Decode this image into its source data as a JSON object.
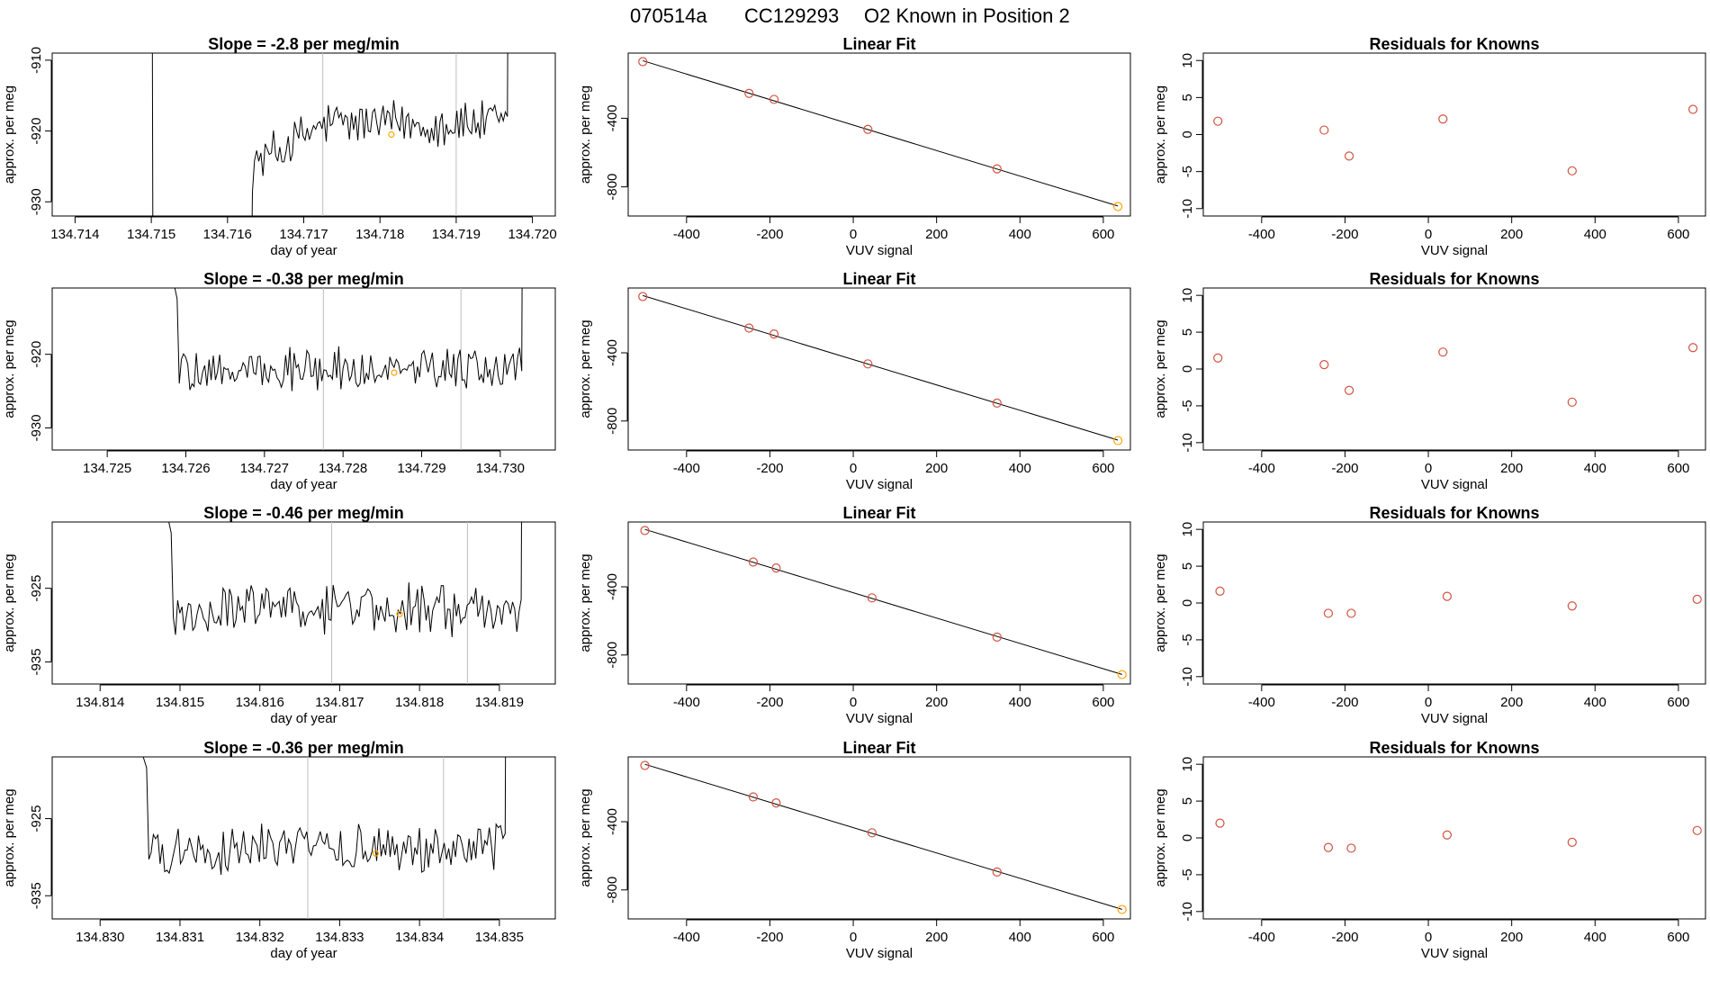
{
  "figure_title": {
    "run": "070514a",
    "cylinder": "CC129293",
    "description": "O2 Known in Position  2"
  },
  "colors": {
    "trace": "#000000",
    "point": "#D2533F",
    "highlight": "#FFA500",
    "vline": "#BEBEBE",
    "fit": "#000000"
  },
  "chart_data": [
    {
      "type": "line",
      "row": 0,
      "title": "Slope =  -2.8  per meg/min",
      "xlabel": "day of year",
      "ylabel": "approx. per meg",
      "xlim": [
        134.7137,
        134.7203
      ],
      "ylim": [
        -932,
        -909
      ],
      "xticks": [
        "134.714",
        "134.715",
        "134.716",
        "134.717",
        "134.718",
        "134.719",
        "134.720"
      ],
      "yticks": [
        "-910",
        "-920",
        "-930"
      ],
      "series_start": 134.715,
      "series_end": 134.7197,
      "settled_from": 134.7163,
      "baseline": -919,
      "early_level": -925,
      "noise": 3,
      "highlight_point": [
        134.71815,
        -920.5
      ],
      "vlines": [
        134.71725,
        134.719
      ]
    },
    {
      "type": "scatter",
      "row": 0,
      "title": "Linear Fit",
      "xlabel": "VUV signal",
      "ylabel": "approx. per meg",
      "xlim": [
        -540,
        665
      ],
      "ylim": [
        -970,
        -20
      ],
      "xticks": [
        "-400",
        "-200",
        "0",
        "200",
        "400",
        "600"
      ],
      "yticks": [
        "-400",
        "-800"
      ],
      "x": [
        -505,
        -250,
        -190,
        35,
        345,
        635
      ],
      "y": [
        -70,
        -255,
        -290,
        -465,
        -695,
        -915
      ]
    },
    {
      "type": "scatter",
      "row": 0,
      "title": "Residuals for Knowns",
      "xlabel": "VUV signal",
      "ylabel": "approx. per meg",
      "xlim": [
        -540,
        665
      ],
      "ylim": [
        -11,
        11
      ],
      "xticks": [
        "-400",
        "-200",
        "0",
        "200",
        "400",
        "600"
      ],
      "yticks": [
        "10",
        "5",
        "0",
        "-5",
        "-10"
      ],
      "x": [
        -505,
        -250,
        -190,
        35,
        345,
        635
      ],
      "y": [
        1.8,
        0.6,
        -2.9,
        2.1,
        -4.9,
        3.4
      ]
    },
    {
      "type": "line",
      "row": 1,
      "title": "Slope =  -0.38  per meg/min",
      "xlabel": "day of year",
      "ylabel": "approx. per meg",
      "xlim": [
        134.7243,
        134.7307
      ],
      "ylim": [
        -933,
        -911
      ],
      "xticks": [
        "134.725",
        "134.726",
        "134.727",
        "134.728",
        "134.729",
        "134.730"
      ],
      "yticks": [
        "-920",
        "-930"
      ],
      "series_start": 134.7257,
      "series_end": 134.7303,
      "settled_from": 134.7259,
      "baseline": -922,
      "early_level": -922,
      "noise": 2.5,
      "highlight_point": [
        134.72865,
        -922.5
      ],
      "vlines": [
        134.72775,
        134.7295
      ]
    },
    {
      "type": "scatter",
      "row": 1,
      "title": "Linear Fit",
      "xlabel": "VUV signal",
      "ylabel": "approx. per meg",
      "xlim": [
        -540,
        665
      ],
      "ylim": [
        -970,
        -20
      ],
      "xticks": [
        "-400",
        "-200",
        "0",
        "200",
        "400",
        "600"
      ],
      "yticks": [
        "-400",
        "-800"
      ],
      "x": [
        -505,
        -250,
        -190,
        35,
        345,
        635
      ],
      "y": [
        -70,
        -255,
        -290,
        -465,
        -695,
        -915
      ]
    },
    {
      "type": "scatter",
      "row": 1,
      "title": "Residuals for Knowns",
      "xlabel": "VUV signal",
      "ylabel": "approx. per meg",
      "xlim": [
        -540,
        665
      ],
      "ylim": [
        -11,
        11
      ],
      "xticks": [
        "-400",
        "-200",
        "0",
        "200",
        "400",
        "600"
      ],
      "yticks": [
        "10",
        "5",
        "0",
        "-5",
        "-10"
      ],
      "x": [
        -505,
        -250,
        -190,
        35,
        345,
        635
      ],
      "y": [
        1.5,
        0.6,
        -2.9,
        2.3,
        -4.5,
        2.9
      ]
    },
    {
      "type": "line",
      "row": 2,
      "title": "Slope =  -0.46  per meg/min",
      "xlabel": "day of year",
      "ylabel": "approx. per meg",
      "xlim": [
        134.8134,
        134.8197
      ],
      "ylim": [
        -938,
        -916
      ],
      "xticks": [
        "134.814",
        "134.815",
        "134.816",
        "134.817",
        "134.818",
        "134.819"
      ],
      "yticks": [
        "-925",
        "-935"
      ],
      "series_start": 134.8147,
      "series_end": 134.8193,
      "settled_from": 134.8149,
      "baseline": -928,
      "early_level": -928,
      "noise": 3,
      "highlight_point": [
        134.81775,
        -928.5
      ],
      "vlines": [
        134.8169,
        134.8186
      ]
    },
    {
      "type": "scatter",
      "row": 2,
      "title": "Linear Fit",
      "xlabel": "VUV signal",
      "ylabel": "approx. per meg",
      "xlim": [
        -540,
        665
      ],
      "ylim": [
        -970,
        -20
      ],
      "xticks": [
        "-400",
        "-200",
        "0",
        "200",
        "400",
        "600"
      ],
      "yticks": [
        "-400",
        "-800"
      ],
      "x": [
        -500,
        -240,
        -185,
        45,
        345,
        645
      ],
      "y": [
        -70,
        -255,
        -290,
        -465,
        -695,
        -915
      ]
    },
    {
      "type": "scatter",
      "row": 2,
      "title": "Residuals for Knowns",
      "xlabel": "VUV signal",
      "ylabel": "approx. per meg",
      "xlim": [
        -540,
        665
      ],
      "ylim": [
        -11,
        11
      ],
      "xticks": [
        "-400",
        "-200",
        "0",
        "200",
        "400",
        "600"
      ],
      "yticks": [
        "10",
        "5",
        "0",
        "-5",
        "-10"
      ],
      "x": [
        -500,
        -240,
        -185,
        45,
        345,
        645
      ],
      "y": [
        1.6,
        -1.4,
        -1.4,
        0.9,
        -0.4,
        0.5
      ]
    },
    {
      "type": "line",
      "row": 3,
      "title": "Slope =  -0.36  per meg/min",
      "xlabel": "day of year",
      "ylabel": "approx. per meg",
      "xlim": [
        134.8294,
        134.8357
      ],
      "ylim": [
        -938,
        -917
      ],
      "xticks": [
        "134.830",
        "134.831",
        "134.832",
        "134.833",
        "134.834",
        "134.835"
      ],
      "yticks": [
        "-925",
        "-935"
      ],
      "series_start": 134.8303,
      "series_end": 134.8351,
      "settled_from": 134.8306,
      "baseline": -929,
      "early_level": -929,
      "noise": 2.8,
      "highlight_point": [
        134.83345,
        -929.5
      ],
      "vlines": [
        134.8326,
        134.8343
      ]
    },
    {
      "type": "scatter",
      "row": 3,
      "title": "Linear Fit",
      "xlabel": "VUV signal",
      "ylabel": "approx. per meg",
      "xlim": [
        -540,
        665
      ],
      "ylim": [
        -970,
        -20
      ],
      "xticks": [
        "-400",
        "-200",
        "0",
        "200",
        "400",
        "600"
      ],
      "yticks": [
        "-400",
        "-800"
      ],
      "x": [
        -500,
        -240,
        -185,
        45,
        345,
        645
      ],
      "y": [
        -70,
        -255,
        -290,
        -465,
        -695,
        -915
      ]
    },
    {
      "type": "scatter",
      "row": 3,
      "title": "Residuals for Knowns",
      "xlabel": "VUV signal",
      "ylabel": "approx. per meg",
      "xlim": [
        -540,
        665
      ],
      "ylim": [
        -11,
        11
      ],
      "xticks": [
        "-400",
        "-200",
        "0",
        "200",
        "400",
        "600"
      ],
      "yticks": [
        "10",
        "5",
        "0",
        "-5",
        "-10"
      ],
      "x": [
        -500,
        -240,
        -185,
        45,
        345,
        645
      ],
      "y": [
        2.0,
        -1.3,
        -1.4,
        0.4,
        -0.6,
        1.0
      ]
    }
  ]
}
